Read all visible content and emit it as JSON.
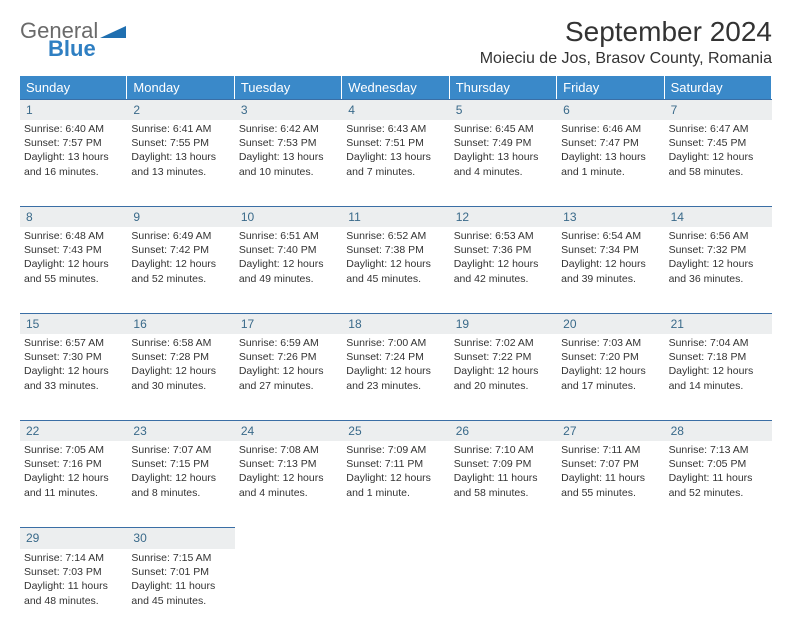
{
  "brand": {
    "line1": "General",
    "line2": "Blue",
    "color_general": "#6a6a6a",
    "color_blue": "#2f7fc2",
    "triangle_color": "#1f6fb0"
  },
  "title": "September 2024",
  "location": "Moieciu de Jos, Brasov County, Romania",
  "colors": {
    "header_bg": "#3a89c9",
    "header_fg": "#ffffff",
    "daynum_bg": "#eceeef",
    "rule": "#3a6ea5",
    "text": "#333333"
  },
  "days_of_week": [
    "Sunday",
    "Monday",
    "Tuesday",
    "Wednesday",
    "Thursday",
    "Friday",
    "Saturday"
  ],
  "weeks": [
    [
      {
        "n": "1",
        "sunrise": "Sunrise: 6:40 AM",
        "sunset": "Sunset: 7:57 PM",
        "d1": "Daylight: 13 hours",
        "d2": "and 16 minutes."
      },
      {
        "n": "2",
        "sunrise": "Sunrise: 6:41 AM",
        "sunset": "Sunset: 7:55 PM",
        "d1": "Daylight: 13 hours",
        "d2": "and 13 minutes."
      },
      {
        "n": "3",
        "sunrise": "Sunrise: 6:42 AM",
        "sunset": "Sunset: 7:53 PM",
        "d1": "Daylight: 13 hours",
        "d2": "and 10 minutes."
      },
      {
        "n": "4",
        "sunrise": "Sunrise: 6:43 AM",
        "sunset": "Sunset: 7:51 PM",
        "d1": "Daylight: 13 hours",
        "d2": "and 7 minutes."
      },
      {
        "n": "5",
        "sunrise": "Sunrise: 6:45 AM",
        "sunset": "Sunset: 7:49 PM",
        "d1": "Daylight: 13 hours",
        "d2": "and 4 minutes."
      },
      {
        "n": "6",
        "sunrise": "Sunrise: 6:46 AM",
        "sunset": "Sunset: 7:47 PM",
        "d1": "Daylight: 13 hours",
        "d2": "and 1 minute."
      },
      {
        "n": "7",
        "sunrise": "Sunrise: 6:47 AM",
        "sunset": "Sunset: 7:45 PM",
        "d1": "Daylight: 12 hours",
        "d2": "and 58 minutes."
      }
    ],
    [
      {
        "n": "8",
        "sunrise": "Sunrise: 6:48 AM",
        "sunset": "Sunset: 7:43 PM",
        "d1": "Daylight: 12 hours",
        "d2": "and 55 minutes."
      },
      {
        "n": "9",
        "sunrise": "Sunrise: 6:49 AM",
        "sunset": "Sunset: 7:42 PM",
        "d1": "Daylight: 12 hours",
        "d2": "and 52 minutes."
      },
      {
        "n": "10",
        "sunrise": "Sunrise: 6:51 AM",
        "sunset": "Sunset: 7:40 PM",
        "d1": "Daylight: 12 hours",
        "d2": "and 49 minutes."
      },
      {
        "n": "11",
        "sunrise": "Sunrise: 6:52 AM",
        "sunset": "Sunset: 7:38 PM",
        "d1": "Daylight: 12 hours",
        "d2": "and 45 minutes."
      },
      {
        "n": "12",
        "sunrise": "Sunrise: 6:53 AM",
        "sunset": "Sunset: 7:36 PM",
        "d1": "Daylight: 12 hours",
        "d2": "and 42 minutes."
      },
      {
        "n": "13",
        "sunrise": "Sunrise: 6:54 AM",
        "sunset": "Sunset: 7:34 PM",
        "d1": "Daylight: 12 hours",
        "d2": "and 39 minutes."
      },
      {
        "n": "14",
        "sunrise": "Sunrise: 6:56 AM",
        "sunset": "Sunset: 7:32 PM",
        "d1": "Daylight: 12 hours",
        "d2": "and 36 minutes."
      }
    ],
    [
      {
        "n": "15",
        "sunrise": "Sunrise: 6:57 AM",
        "sunset": "Sunset: 7:30 PM",
        "d1": "Daylight: 12 hours",
        "d2": "and 33 minutes."
      },
      {
        "n": "16",
        "sunrise": "Sunrise: 6:58 AM",
        "sunset": "Sunset: 7:28 PM",
        "d1": "Daylight: 12 hours",
        "d2": "and 30 minutes."
      },
      {
        "n": "17",
        "sunrise": "Sunrise: 6:59 AM",
        "sunset": "Sunset: 7:26 PM",
        "d1": "Daylight: 12 hours",
        "d2": "and 27 minutes."
      },
      {
        "n": "18",
        "sunrise": "Sunrise: 7:00 AM",
        "sunset": "Sunset: 7:24 PM",
        "d1": "Daylight: 12 hours",
        "d2": "and 23 minutes."
      },
      {
        "n": "19",
        "sunrise": "Sunrise: 7:02 AM",
        "sunset": "Sunset: 7:22 PM",
        "d1": "Daylight: 12 hours",
        "d2": "and 20 minutes."
      },
      {
        "n": "20",
        "sunrise": "Sunrise: 7:03 AM",
        "sunset": "Sunset: 7:20 PM",
        "d1": "Daylight: 12 hours",
        "d2": "and 17 minutes."
      },
      {
        "n": "21",
        "sunrise": "Sunrise: 7:04 AM",
        "sunset": "Sunset: 7:18 PM",
        "d1": "Daylight: 12 hours",
        "d2": "and 14 minutes."
      }
    ],
    [
      {
        "n": "22",
        "sunrise": "Sunrise: 7:05 AM",
        "sunset": "Sunset: 7:16 PM",
        "d1": "Daylight: 12 hours",
        "d2": "and 11 minutes."
      },
      {
        "n": "23",
        "sunrise": "Sunrise: 7:07 AM",
        "sunset": "Sunset: 7:15 PM",
        "d1": "Daylight: 12 hours",
        "d2": "and 8 minutes."
      },
      {
        "n": "24",
        "sunrise": "Sunrise: 7:08 AM",
        "sunset": "Sunset: 7:13 PM",
        "d1": "Daylight: 12 hours",
        "d2": "and 4 minutes."
      },
      {
        "n": "25",
        "sunrise": "Sunrise: 7:09 AM",
        "sunset": "Sunset: 7:11 PM",
        "d1": "Daylight: 12 hours",
        "d2": "and 1 minute."
      },
      {
        "n": "26",
        "sunrise": "Sunrise: 7:10 AM",
        "sunset": "Sunset: 7:09 PM",
        "d1": "Daylight: 11 hours",
        "d2": "and 58 minutes."
      },
      {
        "n": "27",
        "sunrise": "Sunrise: 7:11 AM",
        "sunset": "Sunset: 7:07 PM",
        "d1": "Daylight: 11 hours",
        "d2": "and 55 minutes."
      },
      {
        "n": "28",
        "sunrise": "Sunrise: 7:13 AM",
        "sunset": "Sunset: 7:05 PM",
        "d1": "Daylight: 11 hours",
        "d2": "and 52 minutes."
      }
    ],
    [
      {
        "n": "29",
        "sunrise": "Sunrise: 7:14 AM",
        "sunset": "Sunset: 7:03 PM",
        "d1": "Daylight: 11 hours",
        "d2": "and 48 minutes."
      },
      {
        "n": "30",
        "sunrise": "Sunrise: 7:15 AM",
        "sunset": "Sunset: 7:01 PM",
        "d1": "Daylight: 11 hours",
        "d2": "and 45 minutes."
      },
      null,
      null,
      null,
      null,
      null
    ]
  ]
}
